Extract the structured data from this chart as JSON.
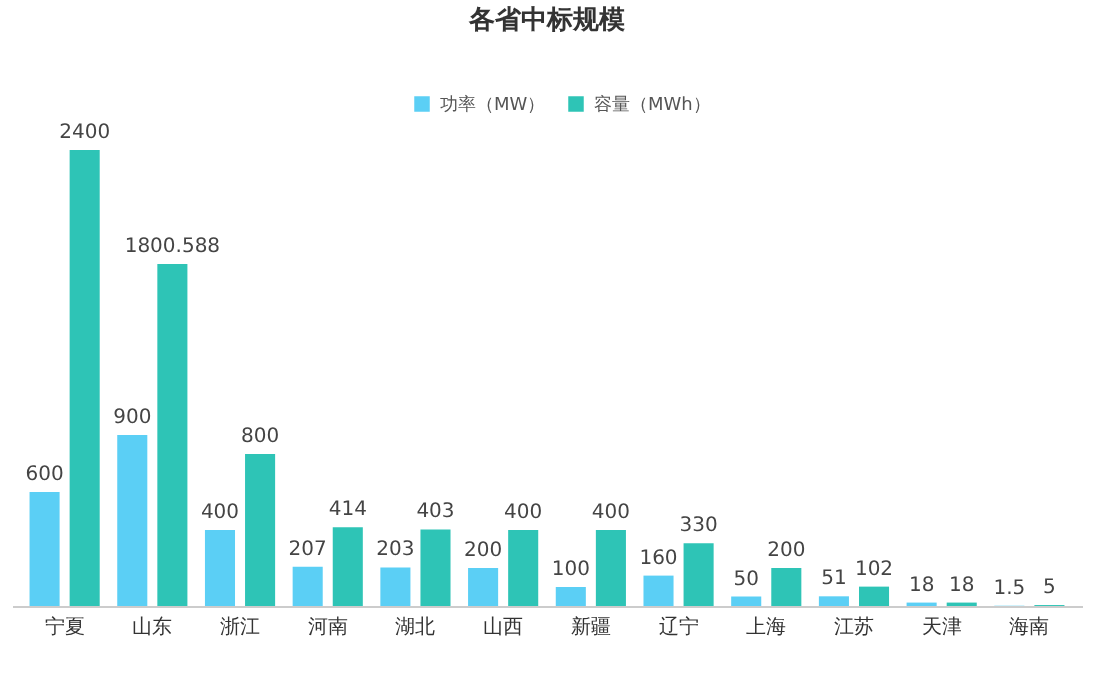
{
  "chart_data": {
    "type": "bar",
    "title": "各省中标规模",
    "categories": [
      "宁夏",
      "山东",
      "浙江",
      "河南",
      "湖北",
      "山西",
      "新疆",
      "辽宁",
      "上海",
      "江苏",
      "天津",
      "海南"
    ],
    "series": [
      {
        "name": "功率（MW）",
        "color": "#5bcff5",
        "values": [
          600,
          900,
          400,
          207,
          203,
          200,
          100,
          160,
          50,
          51,
          18,
          1.5
        ]
      },
      {
        "name": "容量（MWh）",
        "color": "#2ec4b6",
        "values": [
          2400,
          1800.588,
          800,
          414,
          403,
          400,
          400,
          330,
          200,
          102,
          18,
          5
        ]
      }
    ],
    "data_labels": true,
    "legend": "top",
    "tick_labels": "x"
  }
}
